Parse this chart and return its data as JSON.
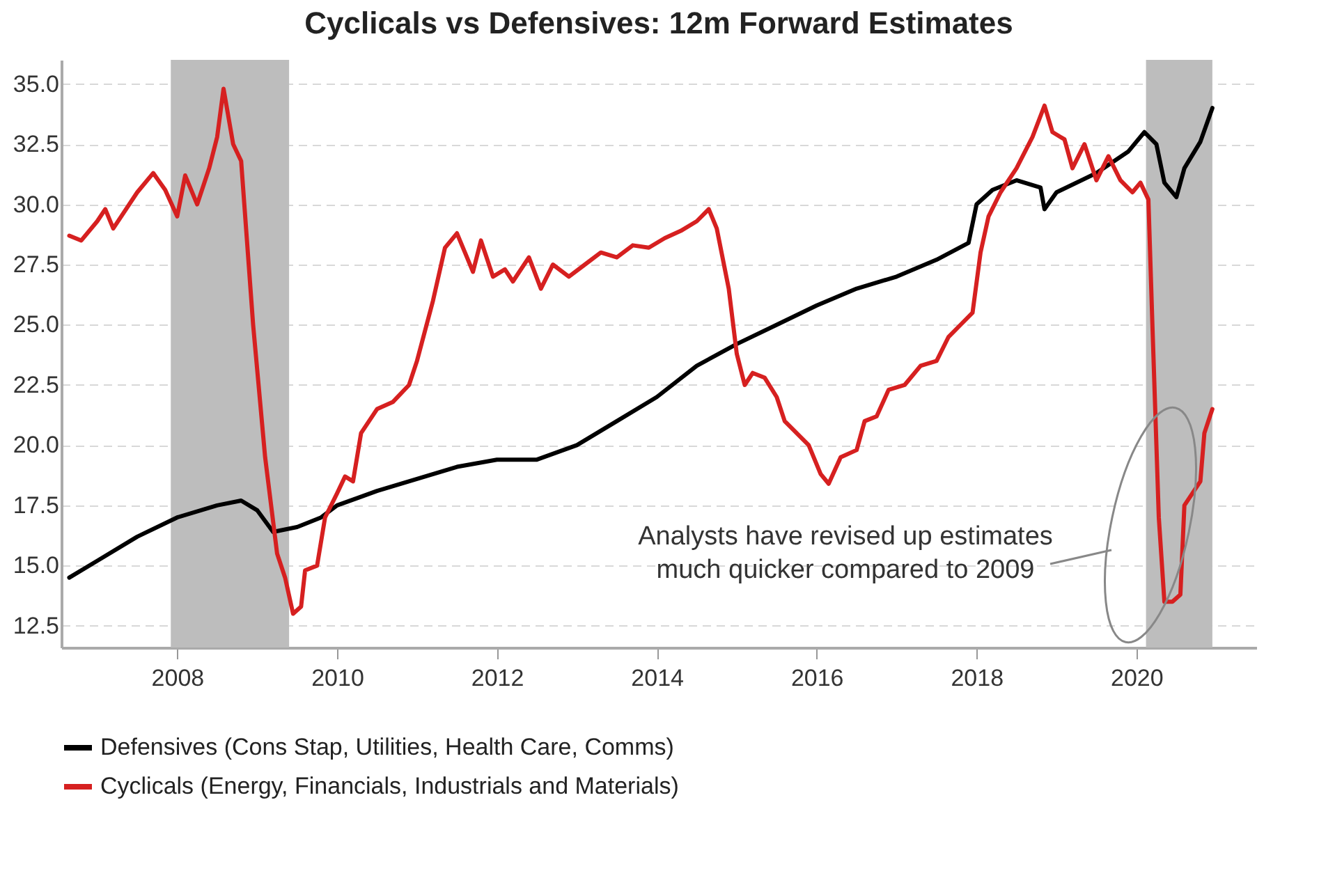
{
  "chart_data": {
    "type": "line",
    "title": "Cyclicals vs Defensives: 12m Forward Estimates",
    "xlim": [
      2006.55,
      2021.5
    ],
    "xticks": [
      2008,
      2010,
      2012,
      2014,
      2016,
      2018,
      2020
    ],
    "ylim": [
      11.6,
      36
    ],
    "yticks": [
      12.5,
      {
        "value": 15,
        "label": "15.0"
      },
      17.5,
      {
        "value": 20,
        "label": "20.0"
      },
      22.5,
      {
        "value": 25,
        "label": "25.0"
      },
      27.5,
      {
        "value": 30,
        "label": "30.0"
      },
      32.5,
      {
        "value": 35,
        "label": "35.0"
      }
    ],
    "grid": "y",
    "legend": "bottom",
    "line_style": "solid",
    "bands": [
      {
        "axis": "x",
        "from": 2007.92,
        "to": 2009.4,
        "color": "#bdbdbd"
      },
      {
        "axis": "x",
        "from": 2020.12,
        "to": 2020.95,
        "color": "#bdbdbd"
      }
    ],
    "annotations": [
      "Analysts have revised up estimates\nmuch quicker compared to 2009"
    ],
    "series": [
      {
        "name": "Defensives (Cons Stap, Utilities, Health Care, Comms)",
        "color": "#000000",
        "x": [
          2006.65,
          2007.0,
          2007.5,
          2008.0,
          2008.5,
          2008.8,
          2009.0,
          2009.2,
          2009.5,
          2009.8,
          2010.0,
          2010.5,
          2011.0,
          2011.5,
          2012.0,
          2012.5,
          2013.0,
          2013.5,
          2014.0,
          2014.5,
          2015.0,
          2015.5,
          2016.0,
          2016.5,
          2017.0,
          2017.5,
          2017.9,
          2018.0,
          2018.2,
          2018.5,
          2018.8,
          2018.85,
          2019.0,
          2019.5,
          2019.9,
          2020.1,
          2020.25,
          2020.35,
          2020.5,
          2020.6,
          2020.8,
          2020.95
        ],
        "values": [
          14.5,
          15.2,
          16.2,
          17.0,
          17.5,
          17.7,
          17.3,
          16.4,
          16.6,
          17.0,
          17.5,
          18.1,
          18.6,
          19.1,
          19.4,
          19.4,
          20.0,
          21.0,
          22.0,
          23.3,
          24.2,
          25.0,
          25.8,
          26.5,
          27.0,
          27.7,
          28.4,
          30.0,
          30.6,
          31.0,
          30.7,
          29.8,
          30.5,
          31.3,
          32.2,
          33.0,
          32.5,
          30.9,
          30.3,
          31.5,
          32.6,
          34.0
        ]
      },
      {
        "name": "Cyclicals (Energy, Financials, Industrials and Materials)",
        "color": "#d62020",
        "x": [
          2006.65,
          2006.8,
          2007.0,
          2007.1,
          2007.2,
          2007.5,
          2007.7,
          2007.85,
          2008.0,
          2008.1,
          2008.25,
          2008.4,
          2008.5,
          2008.58,
          2008.7,
          2008.8,
          2008.95,
          2009.1,
          2009.25,
          2009.35,
          2009.45,
          2009.55,
          2009.6,
          2009.75,
          2009.85,
          2010.0,
          2010.1,
          2010.2,
          2010.3,
          2010.5,
          2010.7,
          2010.9,
          2011.0,
          2011.2,
          2011.35,
          2011.5,
          2011.6,
          2011.7,
          2011.8,
          2011.95,
          2012.1,
          2012.2,
          2012.4,
          2012.55,
          2012.7,
          2012.9,
          2013.1,
          2013.3,
          2013.5,
          2013.7,
          2013.9,
          2014.1,
          2014.3,
          2014.5,
          2014.65,
          2014.75,
          2014.9,
          2015.0,
          2015.1,
          2015.2,
          2015.35,
          2015.5,
          2015.6,
          2015.75,
          2015.9,
          2016.05,
          2016.15,
          2016.3,
          2016.5,
          2016.6,
          2016.75,
          2016.9,
          2017.1,
          2017.3,
          2017.5,
          2017.65,
          2017.8,
          2017.95,
          2018.05,
          2018.15,
          2018.3,
          2018.5,
          2018.7,
          2018.85,
          2018.95,
          2019.1,
          2019.2,
          2019.35,
          2019.5,
          2019.65,
          2019.8,
          2019.95,
          2020.05,
          2020.15,
          2020.2,
          2020.28,
          2020.35,
          2020.45,
          2020.55,
          2020.6,
          2020.7,
          2020.8,
          2020.85,
          2020.95
        ],
        "values": [
          28.7,
          28.5,
          29.3,
          29.8,
          29.0,
          30.5,
          31.3,
          30.6,
          29.5,
          31.2,
          30.0,
          31.5,
          32.8,
          34.8,
          32.5,
          31.8,
          25.0,
          19.5,
          15.5,
          14.5,
          13.0,
          13.3,
          14.8,
          15.0,
          17.0,
          18.0,
          18.7,
          18.5,
          20.5,
          21.5,
          21.8,
          22.5,
          23.5,
          26.0,
          28.2,
          28.8,
          28.0,
          27.2,
          28.5,
          27.0,
          27.3,
          26.8,
          27.8,
          26.5,
          27.5,
          27.0,
          27.5,
          28.0,
          27.8,
          28.3,
          28.2,
          28.6,
          28.9,
          29.3,
          29.8,
          29.0,
          26.5,
          23.8,
          22.5,
          23.0,
          22.8,
          22.0,
          21.0,
          20.5,
          20.0,
          18.8,
          18.4,
          19.5,
          19.8,
          21.0,
          21.2,
          22.3,
          22.5,
          23.3,
          23.5,
          24.5,
          25.0,
          25.5,
          28.0,
          29.5,
          30.5,
          31.5,
          32.8,
          34.1,
          33.0,
          32.7,
          31.5,
          32.5,
          31.0,
          32.0,
          31.0,
          30.5,
          30.9,
          30.2,
          25.0,
          17.0,
          13.5,
          13.5,
          13.8,
          17.5,
          18.0,
          18.5,
          20.5,
          21.5
        ]
      }
    ]
  }
}
